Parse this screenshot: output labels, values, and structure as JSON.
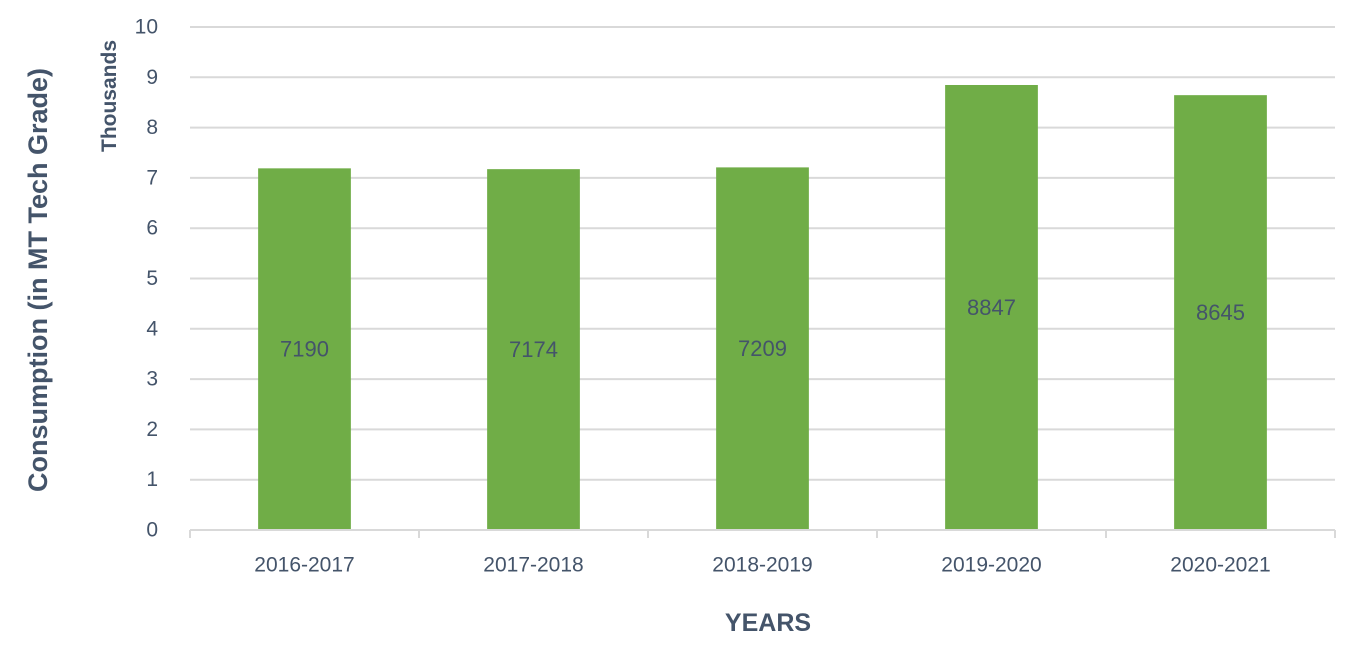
{
  "chart_data": {
    "type": "bar",
    "categories": [
      "2016-2017",
      "2017-2018",
      "2018-2019",
      "2019-2020",
      "2020-2021"
    ],
    "values": [
      7190,
      7174,
      7209,
      8847,
      8645
    ],
    "data_labels": [
      "7190",
      "7174",
      "7209",
      "8847",
      "8645"
    ],
    "title": "",
    "xlabel": "YEARS",
    "ylabel": "Consumption (in MT Tech Grade)",
    "y_display_units": "Thousands",
    "ylim": [
      0,
      10000
    ],
    "y_ticks": [
      0,
      1000,
      2000,
      3000,
      4000,
      5000,
      6000,
      7000,
      8000,
      9000,
      10000
    ],
    "y_tick_labels": [
      "0",
      "1",
      "2",
      "3",
      "4",
      "5",
      "6",
      "7",
      "8",
      "9",
      "10"
    ],
    "grid": true,
    "legend": "none",
    "colors": {
      "bar": "#70ad47",
      "text": "#44546a",
      "grid": "#d9d9d9"
    }
  }
}
